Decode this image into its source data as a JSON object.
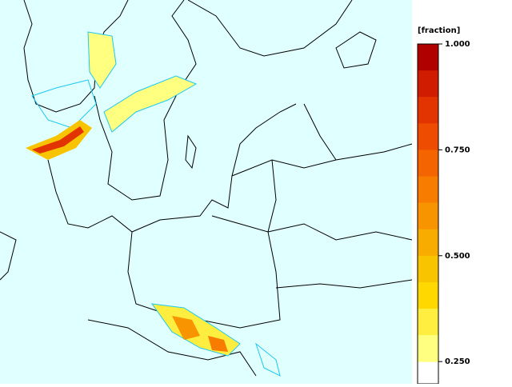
{
  "legend": {
    "title": "[fraction]",
    "ticks": [
      {
        "value": 1,
        "label": "1.000"
      },
      {
        "value": 0.75,
        "label": "0.750"
      },
      {
        "value": 0.5,
        "label": "0.500"
      },
      {
        "value": 0.25,
        "label": "0.250"
      }
    ],
    "band_colors": [
      "#b00000",
      "#d01c00",
      "#e23400",
      "#ee4c00",
      "#f46400",
      "#f87c00",
      "#f89400",
      "#f8ac00",
      "#f8c400",
      "#ffd800",
      "#ffee40",
      "#ffff80"
    ]
  }
}
